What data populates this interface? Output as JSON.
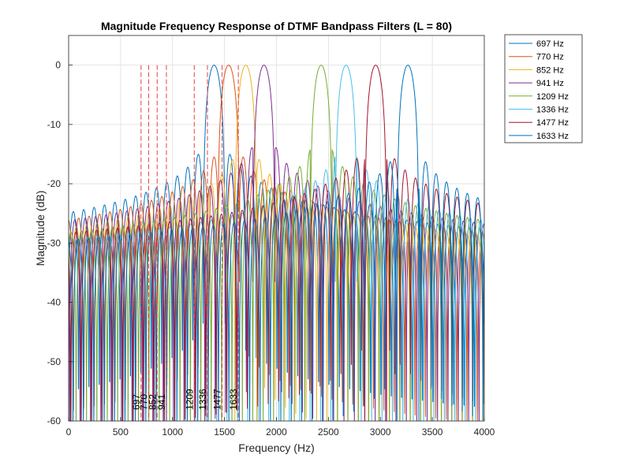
{
  "chart_data": {
    "type": "line",
    "title": "Magnitude Frequency Response of DTMF Bandpass Filters (L = 80)",
    "xlabel": "Frequency (Hz)",
    "ylabel": "Magnitude (dB)",
    "xlim": [
      0,
      4000
    ],
    "ylim": [
      -60,
      5
    ],
    "xticks": [
      0,
      500,
      1000,
      1500,
      2000,
      2500,
      3000,
      3500,
      4000
    ],
    "yticks": [
      0,
      -10,
      -20,
      -30,
      -40,
      -50,
      -60
    ],
    "grid": true,
    "legend_position": "outside-top-right",
    "mainlobe_width_hz": 210,
    "sidelobe_period_hz": 100,
    "series": [
      {
        "name": "697 Hz",
        "center_hz": 1400,
        "peak_db": 0,
        "color": "#0072BD"
      },
      {
        "name": "770 Hz",
        "center_hz": 1540,
        "peak_db": 0,
        "color": "#D95319"
      },
      {
        "name": "852 Hz",
        "center_hz": 1705,
        "peak_db": 0,
        "color": "#EDB120"
      },
      {
        "name": "941 Hz",
        "center_hz": 1880,
        "peak_db": 0,
        "color": "#7E2F8E"
      },
      {
        "name": "1209 Hz",
        "center_hz": 2430,
        "peak_db": 0,
        "color": "#77AC30"
      },
      {
        "name": "1336 Hz",
        "center_hz": 2670,
        "peak_db": 0,
        "color": "#4DBEEE"
      },
      {
        "name": "1477 Hz",
        "center_hz": 2955,
        "peak_db": 0,
        "color": "#A2142F"
      },
      {
        "name": "1633 Hz",
        "center_hz": 3265,
        "peak_db": 0,
        "color": "#0072BD"
      }
    ],
    "vlines": {
      "positions": [
        697,
        770,
        852,
        941,
        1209,
        1336,
        1477,
        1633
      ],
      "labels": [
        "697",
        "770",
        "852",
        "941",
        "1209",
        "1336",
        "1477",
        "1633"
      ],
      "color": "#E8413C",
      "y_range": [
        -60,
        0
      ]
    }
  }
}
